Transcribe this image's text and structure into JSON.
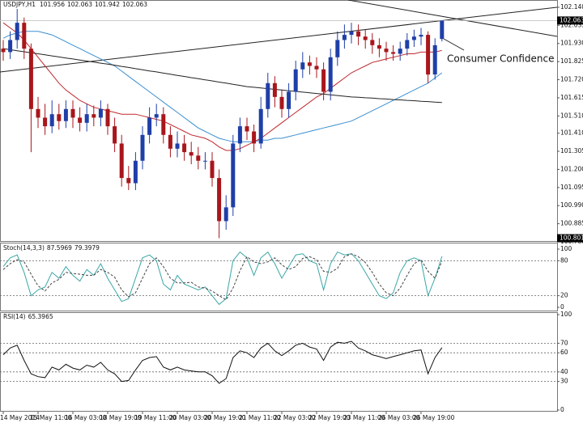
{
  "chart_data": [
    {
      "type": "candlestick",
      "title": "USDJPY,H1",
      "open": [
        101.9,
        101.88,
        101.95,
        102.05,
        101.9,
        101.55,
        101.5,
        101.45,
        101.52,
        101.48,
        101.55,
        101.5,
        101.47,
        101.52,
        101.5,
        101.55,
        101.45,
        101.35,
        101.15,
        101.12,
        101.25,
        101.4,
        101.5,
        101.52,
        101.4,
        101.32,
        101.35,
        101.3,
        101.28,
        101.25,
        101.25,
        101.15,
        100.9,
        100.98,
        101.35,
        101.45,
        101.42,
        101.35,
        101.55,
        101.7,
        101.62,
        101.55,
        101.65,
        101.78,
        101.82,
        101.8,
        101.78,
        101.65,
        101.85,
        101.95,
        101.98,
        102.0,
        101.97,
        101.95,
        101.92,
        101.9,
        101.88,
        101.87,
        101.9,
        101.95,
        101.97,
        101.98,
        101.75,
        101.956
      ],
      "high": [
        101.95,
        102.0,
        102.13,
        102.08,
        101.93,
        101.62,
        101.58,
        101.6,
        101.58,
        101.6,
        101.6,
        101.56,
        101.58,
        101.57,
        101.6,
        101.58,
        101.5,
        101.4,
        101.22,
        101.3,
        101.45,
        101.56,
        101.58,
        101.56,
        101.45,
        101.42,
        101.4,
        101.36,
        101.33,
        101.3,
        101.3,
        101.2,
        101.05,
        101.4,
        101.5,
        101.5,
        101.46,
        101.62,
        101.76,
        101.74,
        101.66,
        101.7,
        101.83,
        101.88,
        101.86,
        101.85,
        101.82,
        101.9,
        102.0,
        102.04,
        102.05,
        102.04,
        102.01,
        101.99,
        101.96,
        101.94,
        101.92,
        101.94,
        101.99,
        102.01,
        102.02,
        102.0,
        101.96,
        102.063
      ],
      "low": [
        101.83,
        101.84,
        101.9,
        101.84,
        101.3,
        101.44,
        101.4,
        101.41,
        101.43,
        101.44,
        101.44,
        101.42,
        101.42,
        101.45,
        101.45,
        101.4,
        101.3,
        101.1,
        101.08,
        101.08,
        101.2,
        101.35,
        101.45,
        101.35,
        101.27,
        101.27,
        101.25,
        101.23,
        101.2,
        101.2,
        101.1,
        100.801,
        100.85,
        100.93,
        101.3,
        101.37,
        101.3,
        101.32,
        101.5,
        101.56,
        101.5,
        101.5,
        101.6,
        101.73,
        101.75,
        101.73,
        101.6,
        101.6,
        101.8,
        101.9,
        101.93,
        101.92,
        101.9,
        101.87,
        101.85,
        101.83,
        101.83,
        101.83,
        101.86,
        101.91,
        101.92,
        101.7,
        101.72,
        101.942
      ],
      "close": [
        101.88,
        101.95,
        102.05,
        101.9,
        101.55,
        101.5,
        101.45,
        101.52,
        101.48,
        101.55,
        101.5,
        101.47,
        101.52,
        101.5,
        101.55,
        101.45,
        101.35,
        101.15,
        101.12,
        101.25,
        101.4,
        101.5,
        101.52,
        101.4,
        101.32,
        101.35,
        101.3,
        101.28,
        101.25,
        101.25,
        101.15,
        100.9,
        100.98,
        101.35,
        101.45,
        101.42,
        101.35,
        101.55,
        101.7,
        101.62,
        101.55,
        101.65,
        101.78,
        101.82,
        101.8,
        101.78,
        101.65,
        101.85,
        101.95,
        101.98,
        102.0,
        101.97,
        101.95,
        101.92,
        101.9,
        101.88,
        101.87,
        101.9,
        101.95,
        101.97,
        101.98,
        101.75,
        101.92,
        102.063
      ],
      "up_color": "#1f3fa8",
      "down_color": "#a8161b",
      "overlays": [
        {
          "color": "#c0282d",
          "values": [
            102.05,
            102.02,
            101.99,
            101.95,
            101.9,
            101.85,
            101.8,
            101.75,
            101.7,
            101.66,
            101.63,
            101.6,
            101.58,
            101.56,
            101.55,
            101.54,
            101.53,
            101.52,
            101.52,
            101.52,
            101.51,
            101.5,
            101.49,
            101.48,
            101.46,
            101.44,
            101.42,
            101.4,
            101.39,
            101.38,
            101.36,
            101.33,
            101.31,
            101.31,
            101.32,
            101.34,
            101.36,
            101.38,
            101.41,
            101.44,
            101.47,
            101.5,
            101.53,
            101.56,
            101.59,
            101.62,
            101.64,
            101.67,
            101.7,
            101.73,
            101.76,
            101.78,
            101.8,
            101.82,
            101.83,
            101.84,
            101.85,
            101.86,
            101.87,
            101.87,
            101.88,
            101.88,
            101.88,
            101.89
          ]
        },
        {
          "color": "#3a8fd1",
          "values": [
            101.96,
            101.98,
            101.99,
            102.0,
            102.0,
            102.0,
            101.99,
            101.98,
            101.96,
            101.94,
            101.92,
            101.9,
            101.88,
            101.86,
            101.84,
            101.82,
            101.8,
            101.77,
            101.74,
            101.71,
            101.68,
            101.65,
            101.62,
            101.59,
            101.56,
            101.53,
            101.5,
            101.47,
            101.44,
            101.42,
            101.4,
            101.38,
            101.37,
            101.36,
            101.36,
            101.36,
            101.36,
            101.37,
            101.37,
            101.38,
            101.38,
            101.39,
            101.4,
            101.41,
            101.42,
            101.43,
            101.44,
            101.45,
            101.46,
            101.47,
            101.48,
            101.5,
            101.52,
            101.54,
            101.56,
            101.58,
            101.6,
            101.62,
            101.64,
            101.66,
            101.68,
            101.7,
            101.73,
            101.76
          ]
        },
        {
          "color": "#222222",
          "values": [
            101.9,
            101.894,
            101.888,
            101.882,
            101.876,
            101.87,
            101.864,
            101.858,
            101.852,
            101.846,
            101.84,
            101.834,
            101.828,
            101.822,
            101.816,
            101.81,
            101.804,
            101.797,
            101.791,
            101.784,
            101.778,
            101.771,
            101.765,
            101.758,
            101.752,
            101.745,
            101.739,
            101.732,
            101.726,
            101.719,
            101.713,
            101.706,
            101.7,
            101.693,
            101.687,
            101.68,
            101.676,
            101.672,
            101.668,
            101.664,
            101.66,
            101.656,
            101.652,
            101.648,
            101.644,
            101.64,
            101.636,
            101.632,
            101.628,
            101.624,
            101.62,
            101.618,
            101.615,
            101.613,
            101.61,
            101.608,
            101.605,
            101.603,
            101.6,
            101.598,
            101.595,
            101.593,
            101.59,
            101.588
          ]
        }
      ],
      "ylim": [
        100.78,
        102.182
      ],
      "yticks": [
        {
          "value": 102.14,
          "label": "102.140"
        },
        {
          "value": 102.035,
          "label": "102.035"
        },
        {
          "value": 101.93,
          "label": "101.930"
        },
        {
          "value": 101.825,
          "label": "101.825"
        },
        {
          "value": 101.72,
          "label": "101.720"
        },
        {
          "value": 101.615,
          "label": "101.615"
        },
        {
          "value": 101.51,
          "label": "101.510"
        },
        {
          "value": 101.41,
          "label": "101.410"
        },
        {
          "value": 101.305,
          "label": "101.305"
        },
        {
          "value": 101.2,
          "label": "101.200"
        },
        {
          "value": 101.095,
          "label": "101.095"
        },
        {
          "value": 100.99,
          "label": "100.990"
        },
        {
          "value": 100.885,
          "label": "100.885"
        },
        {
          "value": 100.78,
          "label": "100.780"
        }
      ],
      "annotation": "Consumer Confidence"
    },
    {
      "type": "line",
      "title": "Stoch(14,3,3)",
      "series": [
        {
          "color": "#3aa6a6",
          "dashed": false,
          "values": [
            70,
            85,
            90,
            60,
            20,
            30,
            35,
            60,
            50,
            70,
            55,
            45,
            65,
            55,
            75,
            50,
            30,
            10,
            15,
            50,
            85,
            90,
            80,
            40,
            30,
            55,
            40,
            35,
            30,
            35,
            20,
            5,
            15,
            80,
            95,
            85,
            55,
            85,
            95,
            75,
            50,
            70,
            90,
            92,
            80,
            75,
            30,
            75,
            95,
            90,
            92,
            80,
            60,
            40,
            20,
            15,
            25,
            60,
            80,
            85,
            80,
            20,
            50,
            87.5969
          ]
        },
        {
          "color": "#444444",
          "dashed": true,
          "values": [
            65,
            75,
            82,
            78,
            57,
            37,
            28,
            42,
            48,
            60,
            58,
            57,
            55,
            55,
            65,
            60,
            52,
            30,
            18,
            25,
            50,
            75,
            85,
            70,
            50,
            42,
            42,
            43,
            35,
            33,
            28,
            20,
            13,
            33,
            63,
            87,
            78,
            75,
            78,
            85,
            73,
            65,
            70,
            84,
            87,
            82,
            62,
            60,
            67,
            87,
            92,
            87,
            77,
            60,
            40,
            25,
            20,
            33,
            55,
            75,
            82,
            62,
            50,
            79.3979
          ]
        }
      ],
      "ylim": [
        0,
        100
      ],
      "yticks": [
        100,
        80,
        20,
        0
      ],
      "levels": [
        80,
        20
      ]
    },
    {
      "type": "line",
      "title": "RSI(14)",
      "series": [
        {
          "color": "#111111",
          "dashed": false,
          "values": [
            58,
            65,
            68,
            52,
            38,
            35,
            34,
            45,
            42,
            48,
            44,
            42,
            47,
            45,
            50,
            42,
            38,
            30,
            31,
            42,
            52,
            55,
            56,
            45,
            42,
            45,
            42,
            41,
            40,
            40,
            36,
            28,
            33,
            55,
            62,
            60,
            55,
            65,
            70,
            62,
            57,
            62,
            68,
            70,
            66,
            64,
            52,
            66,
            71,
            70,
            72,
            65,
            62,
            58,
            56,
            54,
            56,
            58,
            60,
            62,
            63,
            38,
            55,
            65.3965
          ]
        }
      ],
      "ylim": [
        0,
        100
      ],
      "yticks": [
        100,
        70,
        60,
        40,
        30,
        0
      ],
      "levels": [
        70,
        60,
        40,
        30
      ],
      "categories": [
        "14 May 2014",
        null,
        null,
        null,
        null,
        "15 May 11:00",
        null,
        null,
        null,
        null,
        "16 May 03:00",
        null,
        null,
        null,
        null,
        "18 May 19:00",
        null,
        null,
        null,
        null,
        "19 May 11:00",
        null,
        null,
        null,
        null,
        "20 May 03:00",
        null,
        null,
        null,
        null,
        "20 May 19:00",
        null,
        null,
        null,
        null,
        "21 May 11:00",
        null,
        null,
        null,
        null,
        "22 May 03:00",
        null,
        null,
        null,
        null,
        "22 May 19:00",
        null,
        null,
        null,
        null,
        "23 May 11:00",
        null,
        null,
        null,
        null,
        "26 May 03:00",
        null,
        null,
        null,
        null,
        "26 May 19:00",
        null,
        null,
        null
      ]
    }
  ]
}
